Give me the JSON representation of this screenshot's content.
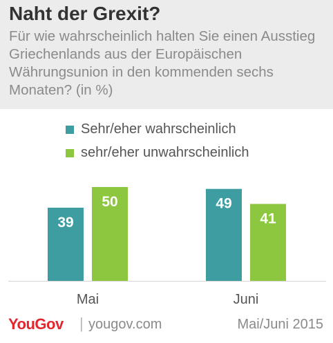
{
  "header": {
    "title": "Naht der Grexit?",
    "subtitle": "Für wie wahrscheinlich halten Sie einen Ausstieg Griechenlands aus der Europäischen Währungsunion in den kommenden sechs Monaten? (in %)"
  },
  "colors": {
    "series1": "#3d9da0",
    "series2": "#8dc63f",
    "axis": "#d4d4d4",
    "label": "#555555"
  },
  "chart_data": {
    "type": "bar",
    "categories": [
      "Mai",
      "Juni"
    ],
    "series": [
      {
        "name": "Sehr/eher wahrscheinlich",
        "values": [
          39,
          49
        ]
      },
      {
        "name": "sehr/eher unwahrscheinlich",
        "values": [
          50,
          41
        ]
      }
    ],
    "ylim": [
      0,
      50
    ],
    "legend": "top",
    "grid": false
  },
  "footer": {
    "logo": "YouGov",
    "separator": "|",
    "url": "yougov.com",
    "date": "Mai/Juni 2015"
  }
}
